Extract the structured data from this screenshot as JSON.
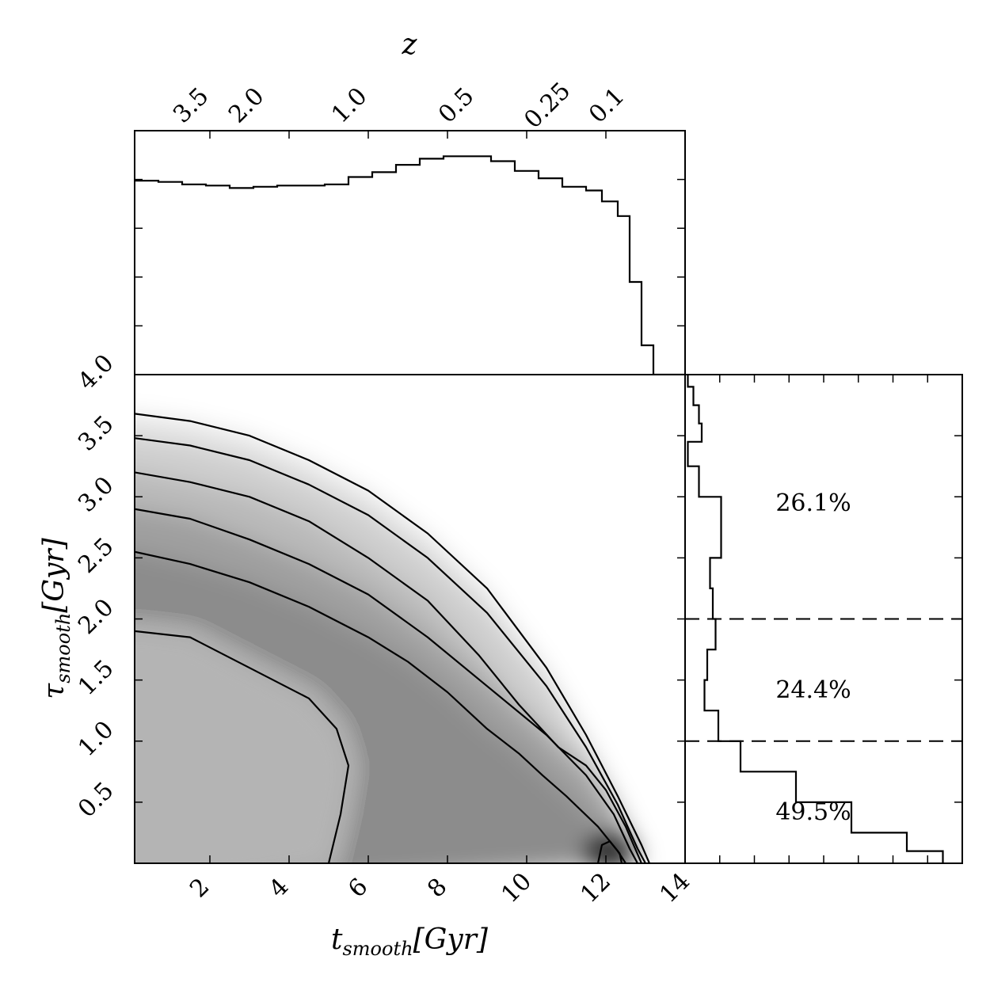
{
  "chart_data": {
    "type": "heatmap",
    "main": {
      "xlabel_main": "t",
      "xlabel_sub": "smooth",
      "xlabel_unit": "[Gyr]",
      "ylabel_main": "τ",
      "ylabel_sub": "smooth",
      "ylabel_unit": "[Gyr]",
      "xlim": [
        0.1,
        14
      ],
      "ylim": [
        0,
        4.0
      ],
      "xticks": [
        2,
        4,
        6,
        8,
        10,
        12,
        14
      ],
      "xtick_labels": [
        "2",
        "4",
        "6",
        "8",
        "10",
        "12",
        "14"
      ],
      "yticks": [
        0.5,
        1.0,
        1.5,
        2.0,
        2.5,
        3.0,
        3.5,
        4.0
      ],
      "ytick_labels": [
        "0.5",
        "1.0",
        "1.5",
        "2.0",
        "2.5",
        "3.0",
        "3.5",
        "4.0"
      ],
      "colormap": "greys",
      "contour_lines": [
        {
          "level": "outer",
          "points": [
            [
              0.1,
              3.68
            ],
            [
              1.5,
              3.62
            ],
            [
              3,
              3.5
            ],
            [
              4.5,
              3.3
            ],
            [
              6,
              3.05
            ],
            [
              7.5,
              2.7
            ],
            [
              9,
              2.25
            ],
            [
              10.5,
              1.6
            ],
            [
              11.5,
              1.05
            ],
            [
              12.3,
              0.55
            ],
            [
              12.9,
              0.15
            ],
            [
              13.1,
              0.0
            ]
          ]
        },
        {
          "level": "second",
          "points": [
            [
              0.1,
              3.48
            ],
            [
              1.5,
              3.42
            ],
            [
              3,
              3.3
            ],
            [
              4.5,
              3.1
            ],
            [
              6,
              2.85
            ],
            [
              7.5,
              2.5
            ],
            [
              9,
              2.05
            ],
            [
              10.5,
              1.45
            ],
            [
              11.5,
              0.95
            ],
            [
              12.3,
              0.48
            ],
            [
              12.8,
              0.12
            ],
            [
              13.0,
              0.0
            ]
          ]
        },
        {
          "level": "third",
          "points": [
            [
              0.1,
              3.2
            ],
            [
              1.5,
              3.12
            ],
            [
              3,
              3.0
            ],
            [
              4.5,
              2.8
            ],
            [
              6,
              2.5
            ],
            [
              7.5,
              2.15
            ],
            [
              8.8,
              1.7
            ],
            [
              9.8,
              1.3
            ],
            [
              10.8,
              0.95
            ],
            [
              11.5,
              0.8
            ],
            [
              12.0,
              0.6
            ],
            [
              12.5,
              0.3
            ],
            [
              12.9,
              0.0
            ]
          ]
        },
        {
          "level": "fourth",
          "points": [
            [
              0.1,
              2.9
            ],
            [
              1.5,
              2.82
            ],
            [
              3,
              2.65
            ],
            [
              4.5,
              2.45
            ],
            [
              6,
              2.2
            ],
            [
              7.5,
              1.85
            ],
            [
              9,
              1.45
            ],
            [
              10.5,
              1.05
            ],
            [
              11.5,
              0.72
            ],
            [
              12.2,
              0.4
            ],
            [
              12.6,
              0.12
            ],
            [
              12.8,
              0.0
            ]
          ]
        },
        {
          "level": "inner",
          "points": [
            [
              0.1,
              2.55
            ],
            [
              1.5,
              2.45
            ],
            [
              3,
              2.3
            ],
            [
              4.5,
              2.1
            ],
            [
              6,
              1.85
            ],
            [
              7,
              1.65
            ],
            [
              8,
              1.4
            ],
            [
              9,
              1.1
            ],
            [
              9.8,
              0.9
            ],
            [
              10.4,
              0.72
            ],
            [
              11,
              0.55
            ],
            [
              11.8,
              0.3
            ],
            [
              12.3,
              0.1
            ],
            [
              12.5,
              0.0
            ]
          ]
        },
        {
          "level": "core",
          "points": [
            [
              0.1,
              1.9
            ],
            [
              1.5,
              1.85
            ],
            [
              3,
              1.6
            ],
            [
              4.5,
              1.35
            ],
            [
              5.2,
              1.1
            ],
            [
              5.5,
              0.8
            ],
            [
              5.3,
              0.4
            ],
            [
              5.0,
              0.0
            ]
          ]
        },
        {
          "level": "peak",
          "points": [
            [
              11.8,
              0.0
            ],
            [
              11.9,
              0.15
            ],
            [
              12.1,
              0.18
            ],
            [
              12.35,
              0.08
            ],
            [
              12.4,
              0.0
            ]
          ]
        }
      ]
    },
    "top": {
      "xlabel": "z",
      "redshift_ticks": [
        {
          "label": "3.5",
          "t": 1.9
        },
        {
          "label": "2.0",
          "t": 3.3
        },
        {
          "label": "1.0",
          "t": 5.9
        },
        {
          "label": "0.5",
          "t": 8.6
        },
        {
          "label": "0.25",
          "t": 10.9
        },
        {
          "label": "0.1",
          "t": 12.4
        }
      ],
      "histogram_x": [
        0.1,
        0.7,
        1.3,
        1.9,
        2.5,
        3.1,
        3.7,
        4.3,
        4.9,
        5.5,
        6.1,
        6.7,
        7.3,
        7.9,
        8.5,
        9.1,
        9.7,
        10.3,
        10.9,
        11.5,
        11.9,
        12.3,
        12.6,
        12.9,
        13.2,
        14.0
      ],
      "histogram_values": [
        0.795,
        0.79,
        0.78,
        0.775,
        0.765,
        0.77,
        0.775,
        0.775,
        0.78,
        0.81,
        0.83,
        0.86,
        0.885,
        0.895,
        0.895,
        0.875,
        0.835,
        0.805,
        0.77,
        0.755,
        0.71,
        0.65,
        0.38,
        0.12,
        0.0
      ]
    },
    "right": {
      "y_edges": [
        0.0,
        0.1,
        0.25,
        0.5,
        0.75,
        1.0,
        1.25,
        1.5,
        1.75,
        2.0,
        2.25,
        2.5,
        2.75,
        3.0,
        3.25,
        3.45,
        3.6,
        3.75,
        3.9,
        4.0
      ],
      "histogram_values": [
        0.93,
        0.8,
        0.6,
        0.4,
        0.2,
        0.12,
        0.07,
        0.08,
        0.11,
        0.1,
        0.09,
        0.13,
        0.13,
        0.05,
        0.01,
        0.06,
        0.05,
        0.03,
        0.01
      ],
      "dividers": [
        1.0,
        2.0
      ],
      "percentages": [
        {
          "label": "26.1%",
          "y": 2.95
        },
        {
          "label": "24.4%",
          "y": 1.42
        },
        {
          "label": "49.5%",
          "y": 0.42
        }
      ]
    }
  }
}
